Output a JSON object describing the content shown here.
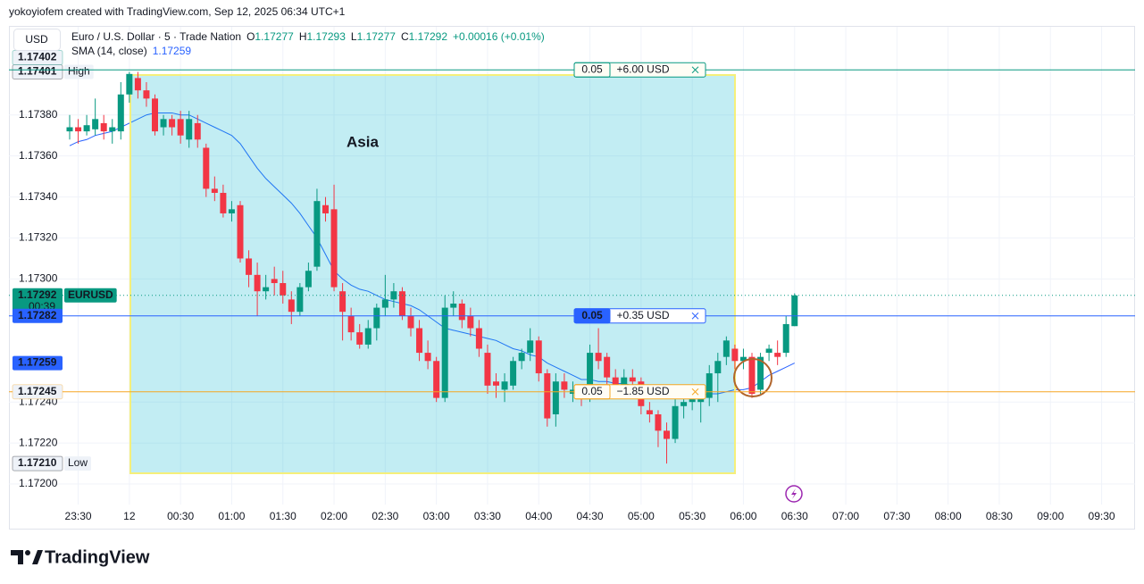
{
  "header": {
    "credit": "yokoyiofem created with TradingView.com, Sep 12, 2025 06:34 UTC+1",
    "currency": "USD",
    "symbol": "Euro / U.S. Dollar · 5 · Trade Nation",
    "ohlc": [
      {
        "label": "O",
        "value": "1.17277"
      },
      {
        "label": "H",
        "value": "1.17293"
      },
      {
        "label": "L",
        "value": "1.17277"
      },
      {
        "label": "C",
        "value": "1.17292"
      }
    ],
    "change": "+0.00016 (+0.01%)",
    "indicator": "SMA (14, close)",
    "indicator_value": "1.17259"
  },
  "chart_data": {
    "type": "candlestick",
    "annotation": "Asia",
    "categories": [
      null,
      "23:30",
      null,
      null,
      null,
      null,
      null,
      "12",
      null,
      null,
      null,
      null,
      null,
      "00:30",
      null,
      null,
      null,
      null,
      null,
      "01:00",
      null,
      null,
      null,
      null,
      null,
      "01:30",
      null,
      null,
      null,
      null,
      null,
      "02:00",
      null,
      null,
      null,
      null,
      null,
      "02:30",
      null,
      null,
      null,
      null,
      null,
      "03:00",
      null,
      null,
      null,
      null,
      null,
      "03:30",
      null,
      null,
      null,
      null,
      null,
      "04:00",
      null,
      null,
      null,
      null,
      null,
      "04:30",
      null,
      null,
      null,
      null,
      null,
      "05:00",
      null,
      null,
      null,
      null,
      null,
      "05:30",
      null,
      null,
      null,
      null,
      null,
      "06:00",
      null,
      null,
      null,
      null,
      null,
      "06:30",
      null,
      null,
      null,
      null,
      null,
      "07:00",
      null,
      null,
      null,
      null,
      null,
      "07:30",
      null,
      null,
      null,
      null,
      null,
      "08:00",
      null,
      null,
      null,
      null,
      null,
      "08:30",
      null,
      null,
      null,
      null,
      null,
      "09:00",
      null,
      null,
      null,
      null,
      null,
      "09:30",
      null
    ],
    "open": [
      1.17372,
      1.17374,
      1.17372,
      1.17373,
      1.17376,
      1.17372,
      1.17372,
      1.1739,
      1.17398,
      1.17392,
      1.17388,
      1.17374,
      1.17378,
      1.17378,
      1.17368,
      1.17376,
      1.17364,
      1.17344,
      1.17342,
      1.17332,
      1.17336,
      1.1731,
      1.17302,
      1.17294,
      1.173,
      1.17298,
      1.1729,
      1.17284,
      1.17296,
      1.17306,
      1.17336,
      1.17334,
      1.17294,
      1.17282,
      1.17274,
      1.17268,
      1.17276,
      1.17286,
      1.1729,
      1.17294,
      1.17282,
      1.17276,
      1.17264,
      1.1726,
      1.17242,
      1.17286,
      1.17288,
      1.17282,
      1.17276,
      1.17264,
      1.1725,
      1.17246,
      1.17248,
      1.1726,
      1.17264,
      1.1727,
      1.17254,
      1.17234,
      1.1725,
      1.17244,
      1.17244,
      1.17242,
      1.17264,
      1.17262,
      1.17252,
      1.17248,
      1.17252,
      1.1725,
      1.17236,
      1.17234,
      1.17226,
      1.17222,
      1.17238,
      1.1724,
      1.1724,
      1.17242,
      1.17254,
      1.17262,
      1.17266,
      1.1726,
      1.17262,
      1.17246,
      1.17264,
      1.17264,
      1.17264,
      1.17277,
      null,
      null,
      null,
      null,
      null,
      null,
      null,
      null,
      null,
      null,
      null,
      null,
      null,
      null,
      null,
      null,
      null,
      null,
      null,
      null,
      null,
      null,
      null,
      null,
      null,
      null,
      null,
      null,
      null,
      null,
      null,
      null,
      null,
      null,
      null,
      null,
      null
    ],
    "high": [
      1.1738,
      1.17378,
      1.1738,
      1.17388,
      1.1738,
      1.17378,
      1.17396,
      1.17401,
      1.17401,
      1.17396,
      1.1739,
      1.1738,
      1.1738,
      1.17382,
      1.17382,
      1.1738,
      1.17366,
      1.1735,
      1.17346,
      1.17338,
      1.17338,
      1.17314,
      1.17308,
      1.17302,
      1.17306,
      1.17304,
      1.17294,
      1.17298,
      1.17308,
      1.17344,
      1.1734,
      1.17346,
      1.17298,
      1.17286,
      1.17278,
      1.1728,
      1.17288,
      1.17302,
      1.17298,
      1.17296,
      1.17286,
      1.1728,
      1.1727,
      1.17262,
      1.17292,
      1.17294,
      1.1729,
      1.17286,
      1.1728,
      1.17268,
      1.17254,
      1.17254,
      1.17262,
      1.17266,
      1.17276,
      1.17272,
      1.17256,
      1.17254,
      1.17254,
      1.1725,
      1.17248,
      1.17268,
      1.17276,
      1.17264,
      1.17256,
      1.17256,
      1.17256,
      1.17252,
      1.1724,
      1.17236,
      1.1723,
      1.17242,
      1.17244,
      1.17248,
      1.17248,
      1.17258,
      1.17264,
      1.17272,
      1.17268,
      1.17266,
      1.17264,
      1.17264,
      1.17268,
      1.1727,
      1.17282,
      1.17293,
      null,
      null,
      null,
      null,
      null,
      null,
      null,
      null,
      null,
      null,
      null,
      null,
      null,
      null,
      null,
      null,
      null,
      null,
      null,
      null,
      null,
      null,
      null,
      null,
      null,
      null,
      null,
      null,
      null,
      null,
      null,
      null,
      null,
      null,
      null,
      null,
      null
    ],
    "low": [
      1.17368,
      1.17366,
      1.1737,
      1.1737,
      1.17368,
      1.17366,
      1.17368,
      1.17386,
      1.17388,
      1.17384,
      1.1737,
      1.1737,
      1.1737,
      1.17366,
      1.17364,
      1.17364,
      1.1734,
      1.17338,
      1.1733,
      1.17328,
      1.17308,
      1.17296,
      1.17282,
      1.1729,
      1.17292,
      1.17288,
      1.17278,
      1.17282,
      1.17294,
      1.17304,
      1.17328,
      1.17294,
      1.1727,
      1.1727,
      1.17266,
      1.17266,
      1.1727,
      1.17282,
      1.17286,
      1.1728,
      1.17272,
      1.1726,
      1.17256,
      1.1724,
      1.1724,
      1.17282,
      1.17276,
      1.17272,
      1.17262,
      1.17244,
      1.17242,
      1.1724,
      1.17246,
      1.17256,
      1.1726,
      1.1725,
      1.17228,
      1.17228,
      1.17242,
      1.1724,
      1.17238,
      1.1724,
      1.17256,
      1.17248,
      1.17244,
      1.17244,
      1.17244,
      1.17234,
      1.1723,
      1.17218,
      1.1721,
      1.1722,
      1.17232,
      1.17236,
      1.1723,
      1.17238,
      1.1724,
      1.17258,
      1.17256,
      1.17256,
      1.17242,
      1.17244,
      1.1726,
      1.17258,
      1.17262,
      1.17277,
      null,
      null,
      null,
      null,
      null,
      null,
      null,
      null,
      null,
      null,
      null,
      null,
      null,
      null,
      null,
      null,
      null,
      null,
      null,
      null,
      null,
      null,
      null,
      null,
      null,
      null,
      null,
      null,
      null,
      null,
      null,
      null,
      null,
      null,
      null,
      null,
      null
    ],
    "close": [
      1.17374,
      1.17372,
      1.17375,
      1.17378,
      1.17372,
      1.17374,
      1.1739,
      1.174,
      1.17392,
      1.17388,
      1.17372,
      1.17378,
      1.17374,
      1.1737,
      1.17378,
      1.17368,
      1.17344,
      1.17342,
      1.17332,
      1.17334,
      1.1731,
      1.17302,
      1.17294,
      1.17296,
      1.17298,
      1.17292,
      1.17284,
      1.17296,
      1.17304,
      1.17338,
      1.17332,
      1.17296,
      1.17284,
      1.17274,
      1.17268,
      1.17276,
      1.17286,
      1.1729,
      1.17294,
      1.17282,
      1.17276,
      1.17264,
      1.1726,
      1.17242,
      1.17286,
      1.17288,
      1.1728,
      1.17276,
      1.17266,
      1.17248,
      1.17248,
      1.1725,
      1.1726,
      1.17264,
      1.1727,
      1.17254,
      1.17232,
      1.1725,
      1.17246,
      1.17246,
      1.17242,
      1.17264,
      1.1726,
      1.17252,
      1.17248,
      1.17252,
      1.1725,
      1.17238,
      1.17234,
      1.17226,
      1.17222,
      1.17238,
      1.1724,
      1.17244,
      1.17244,
      1.17254,
      1.1726,
      1.1727,
      1.1726,
      1.17262,
      1.17244,
      1.17262,
      1.17266,
      1.17262,
      1.17278,
      1.17292,
      null,
      null,
      null,
      null,
      null,
      null,
      null,
      null,
      null,
      null,
      null,
      null,
      null,
      null,
      null,
      null,
      null,
      null,
      null,
      null,
      null,
      null,
      null,
      null,
      null,
      null,
      null,
      null,
      null,
      null,
      null,
      null,
      null,
      null,
      null,
      null,
      null
    ],
    "up_color": "#089981",
    "down_color": "#f23645",
    "sma": {
      "color": "#2962ff",
      "values": [
        1.17365,
        1.17367,
        1.17368,
        1.1737,
        1.17371,
        1.17372,
        1.17374,
        1.17376,
        1.17378,
        1.1738,
        1.17381,
        1.17381,
        1.17381,
        1.1738,
        1.1738,
        1.17378,
        1.17376,
        1.17374,
        1.17372,
        1.1737,
        1.17366,
        1.1736,
        1.17354,
        1.17349,
        1.17345,
        1.17341,
        1.17337,
        1.17332,
        1.17326,
        1.1732,
        1.17312,
        1.17304,
        1.173,
        1.17297,
        1.17295,
        1.17294,
        1.17292,
        1.1729,
        1.17289,
        1.17288,
        1.17287,
        1.17285,
        1.17282,
        1.17279,
        1.17276,
        1.17275,
        1.17274,
        1.17273,
        1.17272,
        1.17271,
        1.1727,
        1.17268,
        1.17266,
        1.17265,
        1.17263,
        1.17262,
        1.17259,
        1.17257,
        1.17255,
        1.17253,
        1.17251,
        1.17251,
        1.1725,
        1.1725,
        1.17249,
        1.17249,
        1.17248,
        1.17247,
        1.17246,
        1.17245,
        1.17244,
        1.17244,
        1.17243,
        1.17243,
        1.17243,
        1.17244,
        1.17244,
        1.17245,
        1.17246,
        1.17246,
        1.17247,
        1.1725,
        1.17253,
        1.17255,
        1.17257,
        1.17259,
        null,
        null,
        null,
        null,
        null,
        null,
        null,
        null,
        null,
        null,
        null,
        null,
        null,
        null,
        null,
        null,
        null,
        null,
        null,
        null,
        null,
        null,
        null,
        null,
        null,
        null,
        null,
        null,
        null,
        null,
        null,
        null,
        null,
        null,
        null,
        null,
        null
      ]
    },
    "ylim": [
      1.1719,
      1.17423
    ],
    "yticks": [
      {
        "value": 1.172,
        "label": "1.17200"
      },
      {
        "value": 1.1722,
        "label": "1.17220"
      },
      {
        "value": 1.1724,
        "label": "1.17240"
      },
      {
        "value": 1.173,
        "label": "1.17300"
      },
      {
        "value": 1.1732,
        "label": "1.17320"
      },
      {
        "value": 1.1734,
        "label": "1.17340"
      },
      {
        "value": 1.1736,
        "label": "1.17360"
      },
      {
        "value": 1.1738,
        "label": "1.17380"
      }
    ],
    "grid": true,
    "price_labels": [
      {
        "price": 1.17401,
        "tag": "High",
        "color": "#131722",
        "filled": false
      },
      {
        "price": 1.17402,
        "color": "#089981",
        "filled": false,
        "line": "solid",
        "order": {
          "qty": "0.05",
          "pnl": "+6.00 USD"
        }
      },
      {
        "price": 1.17292,
        "tag": "EURUSD",
        "countdown": "00:39",
        "color": "#089981",
        "filled": true,
        "line": "dotted"
      },
      {
        "price": 1.17282,
        "color": "#2962ff",
        "filled": true,
        "line": "solid",
        "order": {
          "qty": "0.05",
          "pnl": "+0.35 USD"
        }
      },
      {
        "price": 1.17259,
        "color": "#2962ff",
        "filled": true
      },
      {
        "price": 1.17245,
        "color": "#f5a623",
        "filled": false,
        "line": "solid",
        "order": {
          "qty": "0.05",
          "pnl": "−1.85 USD"
        }
      },
      {
        "price": {
          "value": 1.1721,
          "label": "1.17210"
        },
        "tag": "Low",
        "color": "#131722",
        "filled": false
      }
    ]
  },
  "footer": {
    "brand": "TradingView"
  }
}
